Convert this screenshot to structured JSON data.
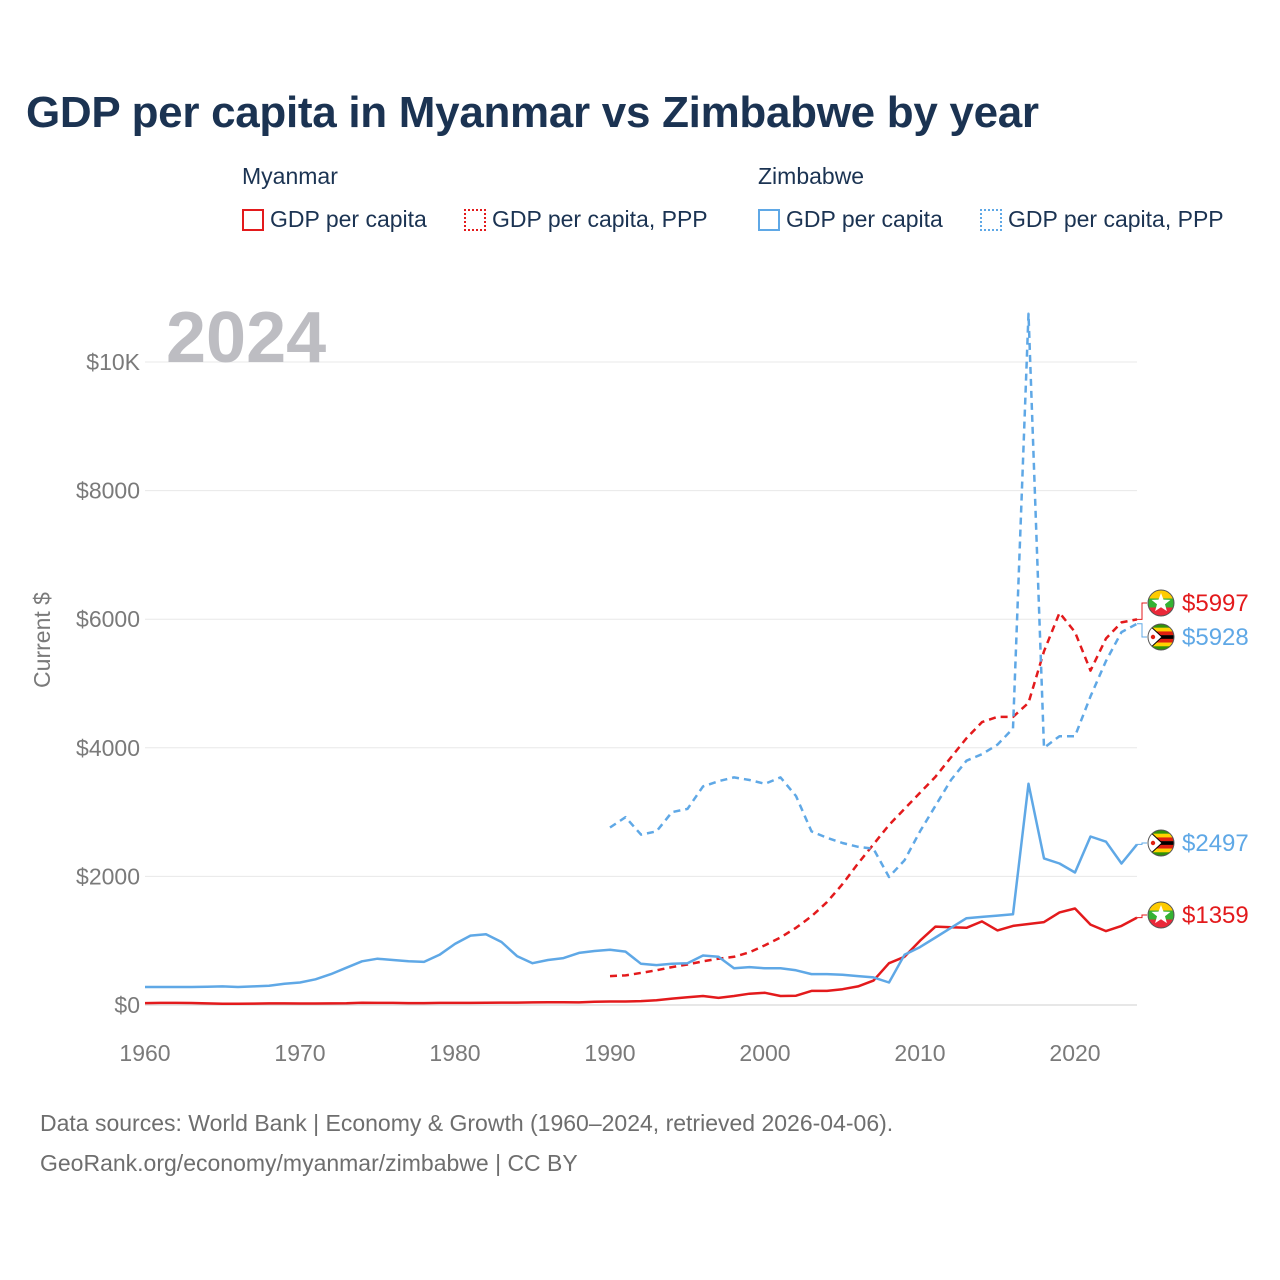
{
  "title": "GDP per capita in Myanmar vs Zimbabwe by year",
  "legend": {
    "groups": [
      {
        "country": "Myanmar",
        "items": [
          "GDP per capita",
          "GDP per capita, PPP"
        ],
        "color": "#e31a1c"
      },
      {
        "country": "Zimbabwe",
        "items": [
          "GDP per capita",
          "GDP per capita, PPP"
        ],
        "color": "#5fa8e6"
      }
    ]
  },
  "source": {
    "line1": "Data sources: World Bank | Economy & Growth (1960–2024, retrieved 2026-04-06).",
    "line2": "GeoRank.org/economy/myanmar/zimbabwe | CC BY"
  },
  "chart_data": {
    "type": "line",
    "title": "GDP per capita in Myanmar vs Zimbabwe by year",
    "year_label": "2024",
    "ylabel": "Current $",
    "xlabel": "",
    "xlim": [
      1960,
      2024
    ],
    "ylim": [
      0,
      10000
    ],
    "xticks": [
      1960,
      1970,
      1980,
      1990,
      2000,
      2010,
      2020
    ],
    "xtick_labels": [
      "1960",
      "1970",
      "1980",
      "1990",
      "2000",
      "2010",
      "2020"
    ],
    "yticks": [
      0,
      2000,
      4000,
      6000,
      8000,
      10000
    ],
    "ytick_labels": [
      "$0",
      "$2000",
      "$4000",
      "$6000",
      "$8000",
      "$10K"
    ],
    "grid": true,
    "colors": {
      "myanmar": "#e31a1c",
      "zimbabwe": "#5fa8e6"
    },
    "end_labels": [
      {
        "series": "Myanmar GDP per capita, PPP",
        "text": "$5997",
        "color": "#e31a1c",
        "flag": "myanmar"
      },
      {
        "series": "Zimbabwe GDP per capita, PPP",
        "text": "$5928",
        "color": "#5fa8e6",
        "flag": "zimbabwe"
      },
      {
        "series": "Zimbabwe GDP per capita",
        "text": "$2497",
        "color": "#5fa8e6",
        "flag": "zimbabwe"
      },
      {
        "series": "Myanmar GDP per capita",
        "text": "$1359",
        "color": "#e31a1c",
        "flag": "myanmar"
      }
    ],
    "series": [
      {
        "name": "Myanmar GDP per capita",
        "country": "myanmar",
        "style": "solid",
        "x": [
          1960,
          1961,
          1962,
          1963,
          1964,
          1965,
          1966,
          1967,
          1968,
          1969,
          1970,
          1971,
          1972,
          1973,
          1974,
          1975,
          1976,
          1977,
          1978,
          1979,
          1980,
          1981,
          1982,
          1983,
          1984,
          1985,
          1986,
          1987,
          1988,
          1989,
          1990,
          1991,
          1992,
          1993,
          1994,
          1995,
          1996,
          1997,
          1998,
          1999,
          2000,
          2001,
          2002,
          2003,
          2004,
          2005,
          2006,
          2007,
          2008,
          2009,
          2010,
          2011,
          2012,
          2013,
          2014,
          2015,
          2016,
          2017,
          2018,
          2019,
          2020,
          2021,
          2022,
          2023,
          2024
        ],
        "values": [
          30,
          32,
          33,
          31,
          25,
          20,
          20,
          22,
          25,
          25,
          24,
          24,
          25,
          27,
          35,
          32,
          32,
          30,
          30,
          32,
          32,
          33,
          35,
          37,
          38,
          40,
          42,
          44,
          40,
          50,
          55,
          55,
          60,
          75,
          100,
          120,
          140,
          110,
          140,
          175,
          190,
          140,
          145,
          220,
          220,
          245,
          290,
          380,
          650,
          750,
          1000,
          1220,
          1210,
          1200,
          1300,
          1160,
          1230,
          1260,
          1290,
          1440,
          1500,
          1250,
          1150,
          1230,
          1359
        ]
      },
      {
        "name": "Myanmar GDP per capita, PPP",
        "country": "myanmar",
        "style": "dashed",
        "x": [
          1990,
          1991,
          1992,
          1993,
          1994,
          1995,
          1996,
          1997,
          1998,
          1999,
          2000,
          2001,
          2002,
          2003,
          2004,
          2005,
          2006,
          2007,
          2008,
          2009,
          2010,
          2011,
          2012,
          2013,
          2014,
          2015,
          2016,
          2017,
          2018,
          2019,
          2020,
          2021,
          2022,
          2023,
          2024
        ],
        "values": [
          450,
          460,
          500,
          540,
          590,
          630,
          680,
          720,
          750,
          820,
          930,
          1050,
          1200,
          1380,
          1600,
          1880,
          2200,
          2500,
          2800,
          3050,
          3300,
          3550,
          3850,
          4150,
          4400,
          4480,
          4480,
          4700,
          5500,
          6100,
          5800,
          5200,
          5700,
          5950,
          5997
        ]
      },
      {
        "name": "Zimbabwe GDP per capita",
        "country": "zimbabwe",
        "style": "solid",
        "x": [
          1960,
          1961,
          1962,
          1963,
          1964,
          1965,
          1966,
          1967,
          1968,
          1969,
          1970,
          1971,
          1972,
          1973,
          1974,
          1975,
          1976,
          1977,
          1978,
          1979,
          1980,
          1981,
          1982,
          1983,
          1984,
          1985,
          1986,
          1987,
          1988,
          1989,
          1990,
          1991,
          1992,
          1993,
          1994,
          1995,
          1996,
          1997,
          1998,
          1999,
          2000,
          2001,
          2002,
          2003,
          2004,
          2005,
          2006,
          2007,
          2008,
          2009,
          2010,
          2011,
          2012,
          2013,
          2014,
          2015,
          2016,
          2017,
          2018,
          2019,
          2020,
          2021,
          2022,
          2023,
          2024
        ],
        "values": [
          280,
          280,
          280,
          280,
          285,
          290,
          280,
          290,
          300,
          330,
          350,
          400,
          480,
          580,
          680,
          720,
          700,
          680,
          670,
          780,
          950,
          1080,
          1100,
          980,
          760,
          650,
          700,
          730,
          810,
          840,
          860,
          830,
          640,
          620,
          640,
          650,
          770,
          750,
          570,
          590,
          570,
          570,
          540,
          480,
          480,
          470,
          450,
          430,
          350,
          780,
          900,
          1050,
          1200,
          1350,
          1370,
          1390,
          1410,
          3440,
          2280,
          2200,
          2060,
          2620,
          2540,
          2200,
          2497
        ]
      },
      {
        "name": "Zimbabwe GDP per capita, PPP",
        "country": "zimbabwe",
        "style": "dashed",
        "x": [
          1990,
          1991,
          1992,
          1993,
          1994,
          1995,
          1996,
          1997,
          1998,
          1999,
          2000,
          2001,
          2002,
          2003,
          2004,
          2005,
          2006,
          2007,
          2008,
          2009,
          2010,
          2011,
          2012,
          2013,
          2014,
          2015,
          2016,
          2017,
          2018,
          2019,
          2020,
          2021,
          2022,
          2023,
          2024
        ],
        "values": [
          2760,
          2920,
          2650,
          2700,
          3000,
          3050,
          3400,
          3480,
          3540,
          3500,
          3440,
          3540,
          3250,
          2700,
          2600,
          2520,
          2460,
          2430,
          1990,
          2250,
          2700,
          3100,
          3500,
          3800,
          3900,
          4050,
          4300,
          10750,
          4000,
          4180,
          4180,
          4800,
          5350,
          5800,
          5928
        ]
      }
    ]
  }
}
